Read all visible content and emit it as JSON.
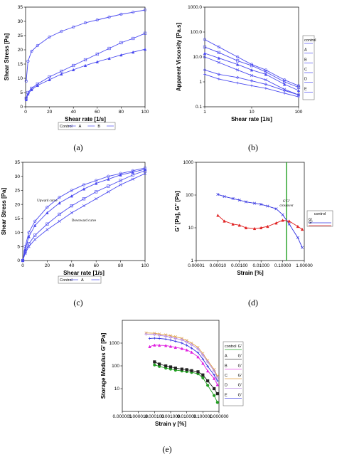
{
  "captions": [
    "(a)",
    "(b)",
    "(c)",
    "(d)",
    "(e)"
  ],
  "chart_data": [
    {
      "type": "line",
      "xlabel": "Shear rate [1/s]",
      "ylabel": "Shear Stress [Pa]",
      "xlim": [
        0,
        100
      ],
      "ylim": [
        0,
        35
      ],
      "xticks": [
        "0",
        "20",
        "40",
        "60",
        "80",
        "100"
      ],
      "yticks": [
        "0",
        "5",
        "10",
        "15",
        "20",
        "25",
        "30",
        "35"
      ],
      "legend": [
        "Control",
        "A",
        "B"
      ],
      "legend_position": "bottom",
      "series": [
        {
          "name": "Control",
          "color": "#4a4af0",
          "x": [
            0.5,
            2,
            5,
            10,
            20,
            30,
            40,
            50,
            60,
            70,
            80,
            90,
            100
          ],
          "y": [
            9,
            16,
            19.5,
            21.5,
            24.5,
            26.5,
            28,
            29.5,
            30.5,
            31.5,
            32.5,
            33.2,
            34
          ]
        },
        {
          "name": "A",
          "color": "#4a4af0",
          "x": [
            0.5,
            2,
            5,
            10,
            20,
            30,
            40,
            50,
            60,
            70,
            80,
            90,
            100
          ],
          "y": [
            3,
            5,
            6.5,
            8,
            10.5,
            12.5,
            14.5,
            16.5,
            18.5,
            20.5,
            22.5,
            24,
            25.8
          ]
        },
        {
          "name": "B",
          "color": "#4a4af0",
          "x": [
            0.5,
            2,
            5,
            10,
            20,
            30,
            40,
            50,
            60,
            70,
            80,
            90,
            100
          ],
          "y": [
            2.5,
            4.5,
            6,
            7.5,
            9.5,
            11.5,
            13,
            14.5,
            15.8,
            17,
            18.2,
            19.2,
            20.2
          ]
        }
      ]
    },
    {
      "type": "line",
      "xlabel": "Shear rate [1/s]",
      "ylabel": "Apparent Viscosity [Pa.s]",
      "xscale": "log",
      "yscale": "log",
      "xlim": [
        1,
        100
      ],
      "ylim": [
        0.1,
        1000
      ],
      "xticks": [
        "1",
        "10",
        "100"
      ],
      "yticks": [
        "0.1",
        "1",
        "10.0",
        "100.0",
        "1000.0"
      ],
      "legend": [
        "control",
        "A",
        "B",
        "C",
        "D",
        "E"
      ],
      "legend_position": "right",
      "series": [
        {
          "name": "control",
          "color": "#4a4af0",
          "x": [
            1,
            2,
            5,
            10,
            20,
            50,
            100
          ],
          "y": [
            50,
            25,
            10,
            5,
            3,
            1.2,
            0.7
          ]
        },
        {
          "name": "A",
          "color": "#4a4af0",
          "x": [
            1,
            2,
            5,
            10,
            20,
            50,
            100
          ],
          "y": [
            25,
            15,
            7,
            4.5,
            2.5,
            1,
            0.6
          ]
        },
        {
          "name": "B",
          "color": "#4a4af0",
          "x": [
            1,
            2,
            5,
            10,
            20,
            50,
            100
          ],
          "y": [
            14,
            9,
            5,
            3,
            2,
            0.8,
            0.45
          ]
        },
        {
          "name": "C",
          "color": "#4a4af0",
          "x": [
            1,
            2,
            5,
            10,
            20,
            50,
            100
          ],
          "y": [
            10,
            6,
            3,
            1.8,
            1.2,
            0.5,
            0.3
          ]
        },
        {
          "name": "D",
          "color": "#4a4af0",
          "x": [
            1,
            2,
            5,
            10,
            20,
            50,
            100
          ],
          "y": [
            3,
            2,
            1.5,
            1.1,
            0.8,
            0.45,
            0.3
          ]
        },
        {
          "name": "E",
          "color": "#4a4af0",
          "x": [
            1,
            2,
            5,
            10,
            20,
            50,
            100
          ],
          "y": [
            2,
            1.3,
            0.9,
            0.7,
            0.55,
            0.35,
            0.25
          ]
        }
      ]
    },
    {
      "type": "line",
      "xlabel": "Shear rate [1/s]",
      "ylabel": "Shear Stress [Pa]",
      "xlim": [
        0,
        100
      ],
      "ylim": [
        0,
        35
      ],
      "xticks": [
        "0",
        "20",
        "40",
        "60",
        "80",
        "100"
      ],
      "yticks": [
        "0",
        "5",
        "10",
        "15",
        "20",
        "25",
        "30",
        "35"
      ],
      "legend": [
        "Control",
        "A"
      ],
      "legend_position": "bottom",
      "annotations": [
        {
          "text": "Upward curve",
          "x": 20,
          "y": 21
        },
        {
          "text": "Downward curve",
          "x": 50,
          "y": 14
        }
      ],
      "series": [
        {
          "name": "Control",
          "color": "#4a4af0",
          "x": [
            0,
            2,
            5,
            10,
            20,
            30,
            40,
            50,
            60,
            70,
            80,
            90,
            100
          ],
          "y": [
            0,
            5,
            10,
            14,
            19,
            22.5,
            25,
            27,
            28.5,
            30,
            31,
            32,
            33
          ]
        },
        {
          "name": "Control",
          "color": "#4a4af0",
          "x": [
            0,
            2,
            5,
            10,
            20,
            30,
            40,
            50,
            60,
            70,
            80,
            90,
            100
          ],
          "y": [
            0,
            3,
            6,
            9,
            13,
            16.5,
            19.5,
            22,
            24.5,
            26.5,
            28.5,
            30.5,
            32
          ]
        },
        {
          "name": "A",
          "color": "#4a4af0",
          "x": [
            0,
            2,
            5,
            10,
            20,
            30,
            40,
            50,
            60,
            70,
            80,
            90,
            100
          ],
          "y": [
            0,
            4,
            8.5,
            12.5,
            17,
            20.5,
            23,
            25.5,
            27.5,
            29,
            30.5,
            31.5,
            32.5
          ]
        },
        {
          "name": "A",
          "color": "#4a4af0",
          "x": [
            0,
            2,
            5,
            10,
            20,
            30,
            40,
            50,
            60,
            70,
            80,
            90,
            100
          ],
          "y": [
            0,
            2.5,
            5,
            7.5,
            11,
            14,
            17,
            19.5,
            22,
            24.5,
            27,
            29,
            31
          ]
        }
      ]
    },
    {
      "type": "line",
      "xlabel": "Strain [%]",
      "ylabel": "G' [Pa], G\" [Pa]",
      "xscale": "log",
      "yscale": "log",
      "xlim": [
        1e-05,
        1
      ],
      "ylim": [
        1,
        1000
      ],
      "xticks": [
        "0.00001",
        "0.00010",
        "0.00100",
        "0.01000",
        "0.10000",
        "1.00000"
      ],
      "yticks": [
        "1",
        "10",
        "100",
        "1000"
      ],
      "legend_title": "control",
      "legend": [
        "G'",
        "G\""
      ],
      "legend_position": "right",
      "annotations": [
        {
          "text": "G'G\"",
          "x": 0.15,
          "y": 60
        },
        {
          "text": "crossover",
          "x": 0.15,
          "y": 45
        }
      ],
      "crossover_line_x": 0.15,
      "series": [
        {
          "name": "G'",
          "color": "#3030e0",
          "x": [
            0.0001,
            0.0002,
            0.0005,
            0.001,
            0.002,
            0.005,
            0.01,
            0.02,
            0.05,
            0.1,
            0.2,
            0.5,
            0.8
          ],
          "y": [
            105,
            90,
            78,
            70,
            62,
            56,
            52,
            46,
            38,
            25,
            13,
            5,
            2.5
          ]
        },
        {
          "name": "G\"",
          "color": "#e02020",
          "x": [
            0.0001,
            0.0002,
            0.0005,
            0.001,
            0.002,
            0.005,
            0.01,
            0.02,
            0.05,
            0.1,
            0.2,
            0.5,
            0.8
          ],
          "y": [
            24,
            16,
            13,
            12,
            10,
            9.5,
            10,
            11,
            14,
            17,
            16,
            11,
            9
          ]
        }
      ]
    },
    {
      "type": "line",
      "xlabel": "Strain γ [%]",
      "ylabel": "Storage Modulus G' [Pa]",
      "xscale": "log",
      "yscale": "log",
      "xlim": [
        1e-06,
        1
      ],
      "ylim": [
        1,
        10000
      ],
      "xticks": [
        "0.000001",
        "0.000010",
        "0.000100",
        "0.001000",
        "0.010000",
        "0.100000",
        "1.000000"
      ],
      "yticks": [
        "10",
        "100",
        "1000"
      ],
      "legend": [
        "control",
        "A",
        "B",
        "C",
        "D",
        "E"
      ],
      "legend_sub": [
        "G'",
        "G'",
        "G'",
        "G'",
        "G'",
        "G'"
      ],
      "legend_position": "right",
      "series": [
        {
          "name": "control",
          "color": "#22a022",
          "x": [
            0.0001,
            0.0002,
            0.0005,
            0.001,
            0.002,
            0.005,
            0.01,
            0.02,
            0.05,
            0.1,
            0.2,
            0.5,
            0.8
          ],
          "y": [
            110,
            95,
            80,
            72,
            65,
            60,
            56,
            52,
            45,
            30,
            14,
            5,
            2.5
          ]
        },
        {
          "name": "A",
          "color": "#222222",
          "x": [
            0.0001,
            0.0002,
            0.0005,
            0.001,
            0.002,
            0.005,
            0.01,
            0.02,
            0.05,
            0.1,
            0.2,
            0.5,
            0.8
          ],
          "y": [
            150,
            120,
            100,
            90,
            80,
            72,
            68,
            62,
            55,
            40,
            22,
            10,
            6
          ]
        },
        {
          "name": "B",
          "color": "#e020e0",
          "x": [
            5e-05,
            0.0001,
            0.0002,
            0.0005,
            0.001,
            0.002,
            0.005,
            0.01,
            0.02,
            0.05,
            0.1,
            0.2,
            0.5,
            0.8
          ],
          "y": [
            700,
            820,
            800,
            780,
            720,
            650,
            580,
            500,
            400,
            250,
            130,
            60,
            28,
            15
          ]
        },
        {
          "name": "C",
          "color": "#e0a040",
          "x": [
            3e-05,
            0.0001,
            0.0002,
            0.0005,
            0.001,
            0.002,
            0.005,
            0.01,
            0.02,
            0.05,
            0.1,
            0.2,
            0.5,
            0.8
          ],
          "y": [
            2800,
            2700,
            2500,
            2300,
            2100,
            1900,
            1600,
            1300,
            1000,
            650,
            350,
            170,
            70,
            35
          ]
        },
        {
          "name": "D",
          "color": "#b080e0",
          "x": [
            3e-05,
            0.0001,
            0.0002,
            0.0005,
            0.001,
            0.002,
            0.005,
            0.01,
            0.02,
            0.05,
            0.1,
            0.2,
            0.5,
            0.8
          ],
          "y": [
            2500,
            2400,
            2200,
            2000,
            1800,
            1600,
            1400,
            1100,
            850,
            550,
            300,
            150,
            60,
            30
          ]
        },
        {
          "name": "E",
          "color": "#3030e0",
          "x": [
            5e-05,
            0.0001,
            0.0002,
            0.0005,
            0.001,
            0.002,
            0.005,
            0.01,
            0.02,
            0.05,
            0.1,
            0.2,
            0.5,
            0.8
          ],
          "y": [
            1600,
            1650,
            1600,
            1500,
            1350,
            1200,
            1000,
            800,
            600,
            380,
            200,
            95,
            40,
            22
          ]
        }
      ]
    }
  ]
}
